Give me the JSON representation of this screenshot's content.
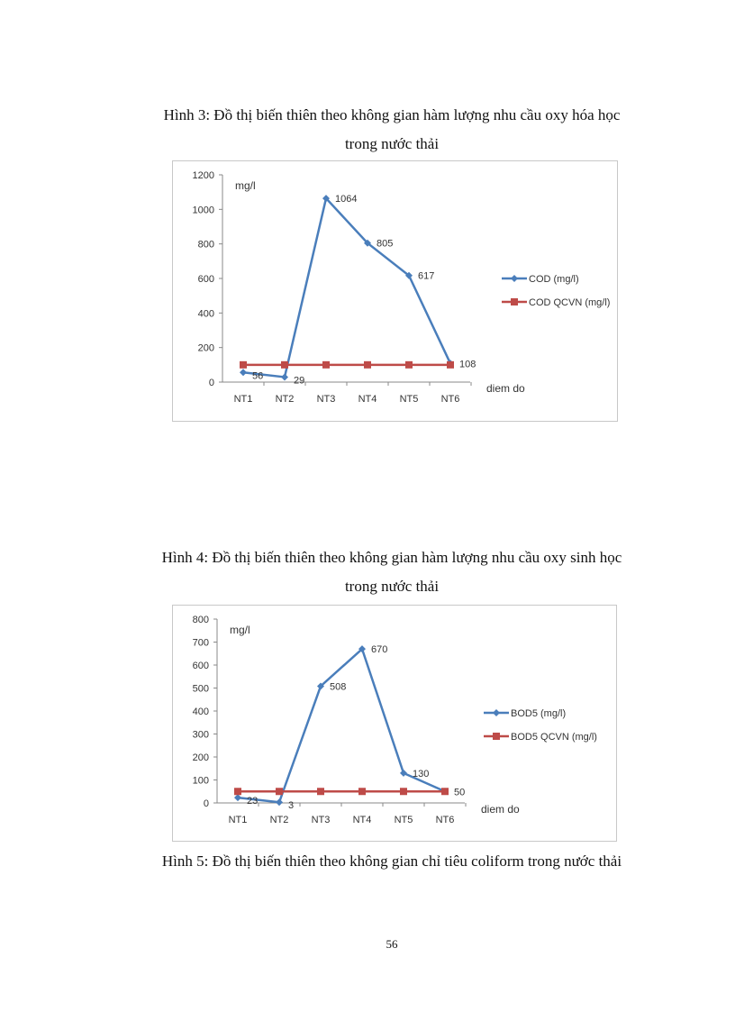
{
  "figure3": {
    "caption_line1": "Hình 3: Đồ thị biến thiên theo không gian hàm lượng nhu cầu oxy hóa học",
    "caption_line2": "trong nước thải"
  },
  "figure4": {
    "caption_line1": "Hình 4: Đồ thị biến thiên theo không gian hàm lượng nhu cầu oxy sinh học",
    "caption_line2": "trong nước thải"
  },
  "figure5": {
    "caption": "Hình 5: Đồ thị biến thiên theo không gian chỉ tiêu coliform trong nước thải"
  },
  "page_number": "56",
  "colors": {
    "measured": "#4a7ebb",
    "standard": "#be4b48"
  },
  "chart_data": [
    {
      "type": "line",
      "categories": [
        "NT1",
        "NT2",
        "NT3",
        "NT4",
        "NT5",
        "NT6"
      ],
      "ylabel": "mg/l",
      "xlabel": "diem do",
      "ylim": [
        0,
        1200
      ],
      "yticks": [
        0,
        200,
        400,
        600,
        800,
        1000,
        1200
      ],
      "grid": false,
      "legend_position": "right",
      "series": [
        {
          "name": "COD (mg/l)",
          "values": [
            56,
            29,
            1064,
            805,
            617,
            108
          ],
          "marker": "diamond",
          "data_labels": [
            "56",
            "29",
            "1064",
            "805",
            "617",
            "108"
          ]
        },
        {
          "name": "COD QCVN (mg/l)",
          "values": [
            100,
            100,
            100,
            100,
            100,
            100
          ],
          "marker": "square"
        }
      ]
    },
    {
      "type": "line",
      "categories": [
        "NT1",
        "NT2",
        "NT3",
        "NT4",
        "NT5",
        "NT6"
      ],
      "ylabel": "mg/l",
      "xlabel": "diem do",
      "ylim": [
        0,
        800
      ],
      "yticks": [
        0,
        100,
        200,
        300,
        400,
        500,
        600,
        700,
        800
      ],
      "grid": false,
      "legend_position": "right",
      "series": [
        {
          "name": "BOD5 (mg/l)",
          "values": [
            23,
            3,
            508,
            670,
            130,
            50
          ],
          "marker": "diamond",
          "data_labels": [
            "23",
            "3",
            "508",
            "670",
            "130",
            "50"
          ]
        },
        {
          "name": "BOD5 QCVN (mg/l)",
          "values": [
            50,
            50,
            50,
            50,
            50,
            50
          ],
          "marker": "square"
        }
      ]
    }
  ]
}
